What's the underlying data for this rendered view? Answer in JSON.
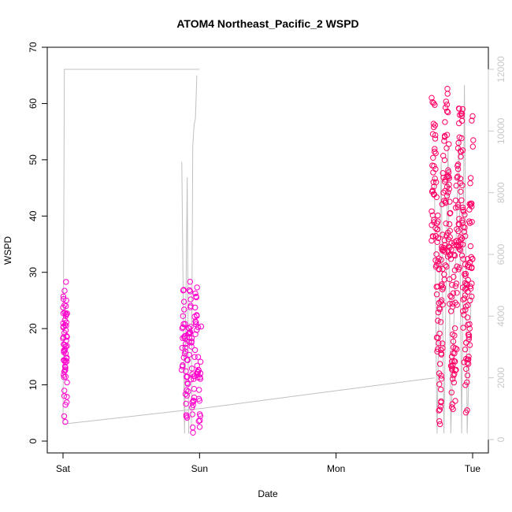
{
  "chart_data": {
    "type": "scatter",
    "title": "ATOM4 Northeast_Pacific_2 WSPD",
    "xlabel": "Date",
    "ylabel": "WSPD",
    "x_ticks": [
      "Sat",
      "Sun",
      "Mon",
      "Tue"
    ],
    "x_range_days": [
      0,
      3.05
    ],
    "ylim": [
      0,
      70
    ],
    "y_ticks": [
      0,
      10,
      20,
      30,
      40,
      50,
      60,
      70
    ],
    "y2lim": [
      0,
      12000
    ],
    "y2_ticks": [
      0,
      2000,
      4000,
      6000,
      8000,
      10000,
      12000
    ],
    "grid": false,
    "legend": "none",
    "series": [
      {
        "kind": "points",
        "color": "#ff00cc",
        "clusters": [
          {
            "x_start": 0.0,
            "x_end": 0.03,
            "count": 60,
            "y_min": 2,
            "y_max": 31
          },
          {
            "x_start": 0.87,
            "x_end": 1.01,
            "count": 110,
            "y_min": 0.5,
            "y_max": 30
          }
        ]
      },
      {
        "kind": "points",
        "color": "#ff0066",
        "clusters": [
          {
            "x_start": 2.7,
            "x_end": 3.0,
            "count": 360,
            "y_min": 0.5,
            "y_max": 67
          }
        ]
      },
      {
        "kind": "line",
        "axis": "right",
        "color": "#c0c0c0",
        "segments": [
          [
            [
              0.0,
              500
            ],
            [
              0.01,
              12000
            ],
            [
              0.99,
              12000
            ],
            [
              1.0,
              12000
            ]
          ],
          [
            [
              0.0,
              500
            ],
            [
              1.0,
              1000
            ],
            [
              2.72,
              2000
            ]
          ],
          [
            [
              0.87,
              9000
            ],
            [
              0.89,
              200
            ],
            [
              0.91,
              8500
            ],
            [
              0.92,
              200
            ]
          ],
          [
            [
              0.94,
              400
            ],
            [
              0.95,
              9500
            ],
            [
              0.96,
              10200
            ],
            [
              0.97,
              10400
            ],
            [
              0.98,
              11800
            ]
          ],
          [
            [
              2.72,
              8500
            ],
            [
              2.74,
              200
            ],
            [
              2.77,
              9000
            ],
            [
              2.79,
              200
            ],
            [
              2.82,
              9500
            ],
            [
              2.84,
              200
            ],
            [
              2.9,
              9800
            ],
            [
              2.92,
              200
            ],
            [
              2.94,
              11500
            ],
            [
              2.96,
              200
            ],
            [
              2.99,
              4800
            ]
          ]
        ]
      }
    ]
  }
}
